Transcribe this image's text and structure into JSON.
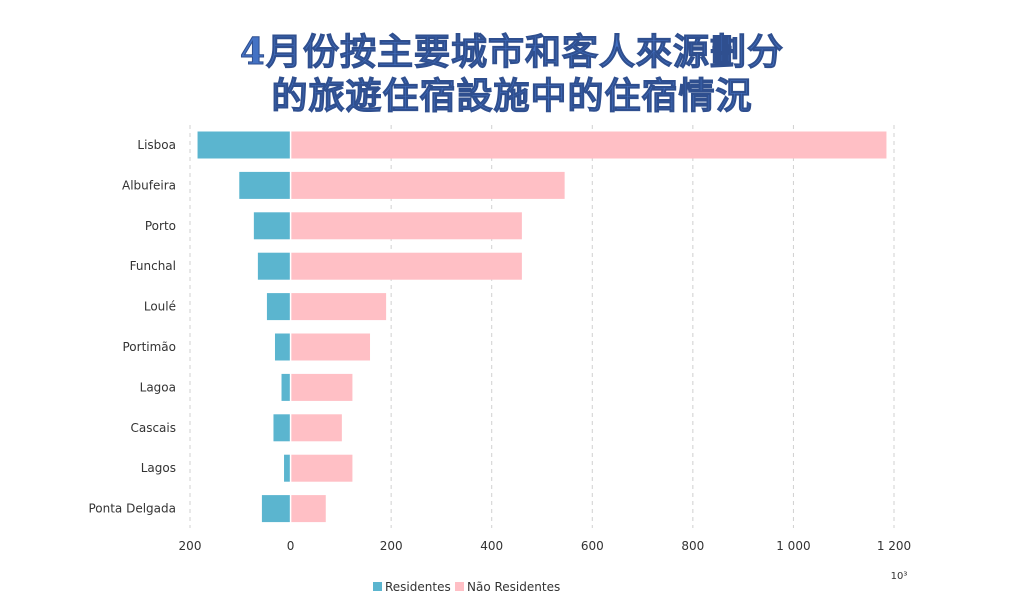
{
  "chart_data": {
    "type": "bar",
    "orientation": "horizontal",
    "layout": "butterfly (Residentes extend left of zero, Não Residentes extend right)",
    "title": "4月份按主要城市和客人來源劃分的旅遊住宿設施中的住宿情況",
    "title_lines": [
      "4月份按主要城市和客人來源劃分",
      "的旅遊住宿設施中的住宿情況"
    ],
    "categories": [
      "Lisboa",
      "Albufeira",
      "Porto",
      "Funchal",
      "Loulé",
      "Portimão",
      "Lagoa",
      "Cascais",
      "Lagos",
      "Ponta Delgada"
    ],
    "series": [
      {
        "name": "Residentes",
        "color": "#5bb5cf",
        "values": [
          185,
          102,
          73,
          65,
          47,
          31,
          18,
          34,
          13,
          57
        ]
      },
      {
        "name": "Não Residentes",
        "color": "#ffbfc5",
        "values": [
          1185,
          545,
          460,
          460,
          190,
          158,
          123,
          102,
          123,
          70
        ]
      }
    ],
    "xticks": [
      -200,
      0,
      200,
      400,
      600,
      800,
      1000,
      1200
    ],
    "xtick_labels": [
      "200",
      "0",
      "200",
      "400",
      "600",
      "800",
      "1 000",
      "1 200"
    ],
    "xlim": [
      -200,
      1200
    ],
    "unit": "10³",
    "grid": "vertical dashed",
    "legend": "bottom-center"
  }
}
